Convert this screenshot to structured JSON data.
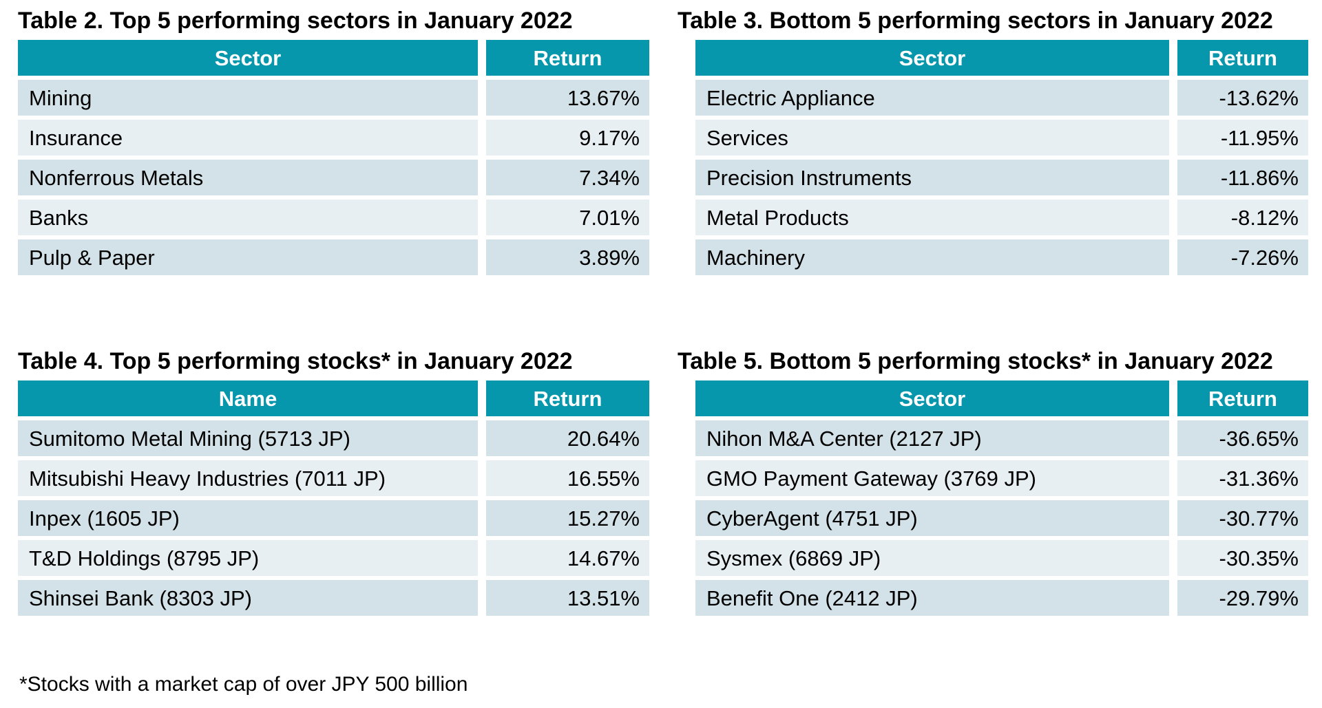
{
  "colors": {
    "header_bg": "#0797AD",
    "header_text": "#ffffff",
    "row_odd_bg": "#D3E2E8",
    "row_even_bg": "#E7EFF3",
    "body_text": "#000000",
    "page_bg": "#ffffff"
  },
  "tables": [
    {
      "title": "Table 2. Top 5 performing sectors in January 2022",
      "columns": [
        "Sector",
        "Return"
      ],
      "rows": [
        {
          "name": "Mining",
          "return": "13.67%"
        },
        {
          "name": "Insurance",
          "return": "9.17%"
        },
        {
          "name": "Nonferrous Metals",
          "return": "7.34%"
        },
        {
          "name": "Banks",
          "return": "7.01%"
        },
        {
          "name": "Pulp & Paper",
          "return": "3.89%"
        }
      ]
    },
    {
      "title": "Table 3. Bottom 5 performing sectors in January 2022",
      "columns": [
        "Sector",
        "Return"
      ],
      "rows": [
        {
          "name": "Electric Appliance",
          "return": "-13.62%"
        },
        {
          "name": "Services",
          "return": "-11.95%"
        },
        {
          "name": "Precision Instruments",
          "return": "-11.86%"
        },
        {
          "name": "Metal Products",
          "return": "-8.12%"
        },
        {
          "name": "Machinery",
          "return": "-7.26%"
        }
      ]
    },
    {
      "title": "Table 4. Top 5 performing stocks* in January 2022",
      "columns": [
        "Name",
        "Return"
      ],
      "rows": [
        {
          "name": "Sumitomo Metal Mining (5713 JP)",
          "return": "20.64%"
        },
        {
          "name": "Mitsubishi Heavy Industries (7011 JP)",
          "return": "16.55%"
        },
        {
          "name": "Inpex (1605 JP)",
          "return": "15.27%"
        },
        {
          "name": "T&D Holdings (8795 JP)",
          "return": "14.67%"
        },
        {
          "name": "Shinsei Bank (8303 JP)",
          "return": "13.51%"
        }
      ]
    },
    {
      "title": "Table 5. Bottom 5 performing stocks* in January 2022",
      "columns": [
        "Sector",
        "Return"
      ],
      "rows": [
        {
          "name": "Nihon M&A Center (2127 JP)",
          "return": "-36.65%"
        },
        {
          "name": "GMO Payment Gateway (3769 JP)",
          "return": "-31.36%"
        },
        {
          "name": "CyberAgent (4751 JP)",
          "return": "-30.77%"
        },
        {
          "name": "Sysmex (6869 JP)",
          "return": "-30.35%"
        },
        {
          "name": "Benefit One (2412 JP)",
          "return": "-29.79%"
        }
      ]
    }
  ],
  "footnote": "*Stocks with a market cap of over JPY 500 billion"
}
